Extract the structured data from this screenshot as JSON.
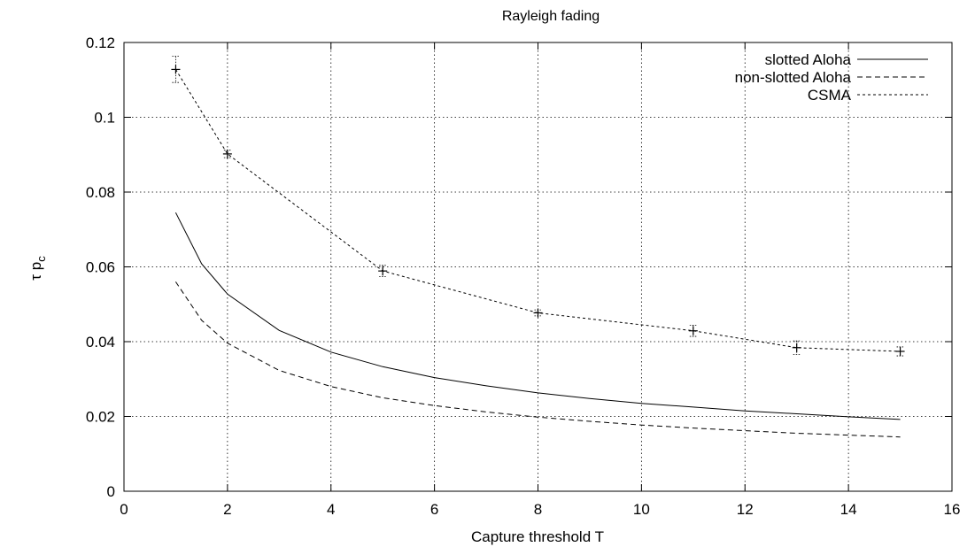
{
  "chart_data": {
    "type": "line",
    "title": "Rayleigh fading",
    "xlabel": "Capture threshold T",
    "ylabel_main": "τ p",
    "ylabel_sub": "c",
    "xlim": [
      0,
      16
    ],
    "ylim": [
      0,
      0.12
    ],
    "xticks": [
      "0",
      "2",
      "4",
      "6",
      "8",
      "10",
      "12",
      "14",
      "16"
    ],
    "yticks": [
      "0",
      "0.02",
      "0.04",
      "0.06",
      "0.08",
      "0.1",
      "0.12"
    ],
    "grid": true,
    "legend_position": "top-right",
    "series": [
      {
        "name": "slotted Aloha",
        "style": "solid",
        "markers": false,
        "x": [
          1,
          1.5,
          2,
          3,
          4,
          5,
          6,
          7,
          8,
          9,
          10,
          11,
          12,
          13,
          14,
          15
        ],
        "y": [
          0.0745,
          0.0608,
          0.0527,
          0.043,
          0.0372,
          0.0333,
          0.0304,
          0.0282,
          0.0263,
          0.0248,
          0.0235,
          0.0225,
          0.0215,
          0.0207,
          0.0199,
          0.0192
        ]
      },
      {
        "name": "non-slotted Aloha",
        "style": "dashed",
        "markers": false,
        "x": [
          1,
          1.5,
          2,
          3,
          4,
          5,
          6,
          7,
          8,
          9,
          10,
          11,
          12,
          13,
          14,
          15
        ],
        "y": [
          0.056,
          0.0457,
          0.0396,
          0.0323,
          0.028,
          0.025,
          0.0229,
          0.0212,
          0.0198,
          0.0187,
          0.0177,
          0.0169,
          0.0162,
          0.0155,
          0.015,
          0.0145
        ]
      },
      {
        "name": "CSMA",
        "style": "dotted",
        "markers": true,
        "x": [
          1,
          2,
          5,
          8,
          11,
          13,
          15
        ],
        "y": [
          0.1128,
          0.0902,
          0.0589,
          0.0477,
          0.0429,
          0.0384,
          0.0374
        ],
        "err": [
          0.0035,
          0.001,
          0.0015,
          0.0008,
          0.0015,
          0.0018,
          0.0012
        ]
      }
    ]
  }
}
